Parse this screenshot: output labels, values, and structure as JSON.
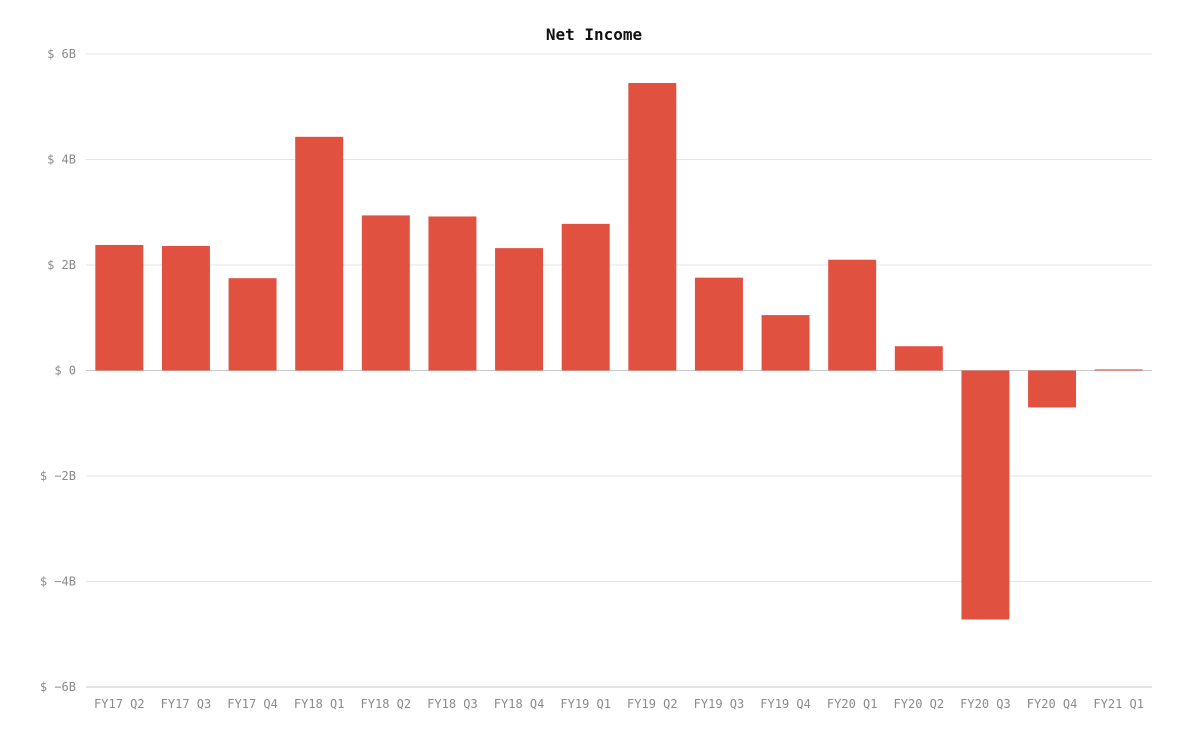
{
  "chart_data": {
    "type": "bar",
    "title": "Net Income",
    "xlabel": "",
    "ylabel": "",
    "categories": [
      "FY17 Q2",
      "FY17 Q3",
      "FY17 Q4",
      "FY18 Q1",
      "FY18 Q2",
      "FY18 Q3",
      "FY18 Q4",
      "FY19 Q1",
      "FY19 Q2",
      "FY19 Q3",
      "FY19 Q4",
      "FY20 Q1",
      "FY20 Q2",
      "FY20 Q3",
      "FY20 Q4",
      "FY21 Q1"
    ],
    "values": [
      2.38,
      2.36,
      1.75,
      4.43,
      2.94,
      2.92,
      2.32,
      2.78,
      5.45,
      1.76,
      1.05,
      2.1,
      0.46,
      -4.72,
      -0.7,
      0.02
    ],
    "unit": "billions USD",
    "ylim": [
      -6,
      6
    ],
    "yticks": [
      -6,
      -4,
      -2,
      0,
      2,
      4,
      6
    ],
    "ytick_labels": [
      "$ −6B",
      "$ −4B",
      "$ −2B",
      "$ 0",
      "$ 2B",
      "$ 4B",
      "$ 6B"
    ],
    "bar_color": "#e15140",
    "grid": true,
    "legend": "none"
  }
}
